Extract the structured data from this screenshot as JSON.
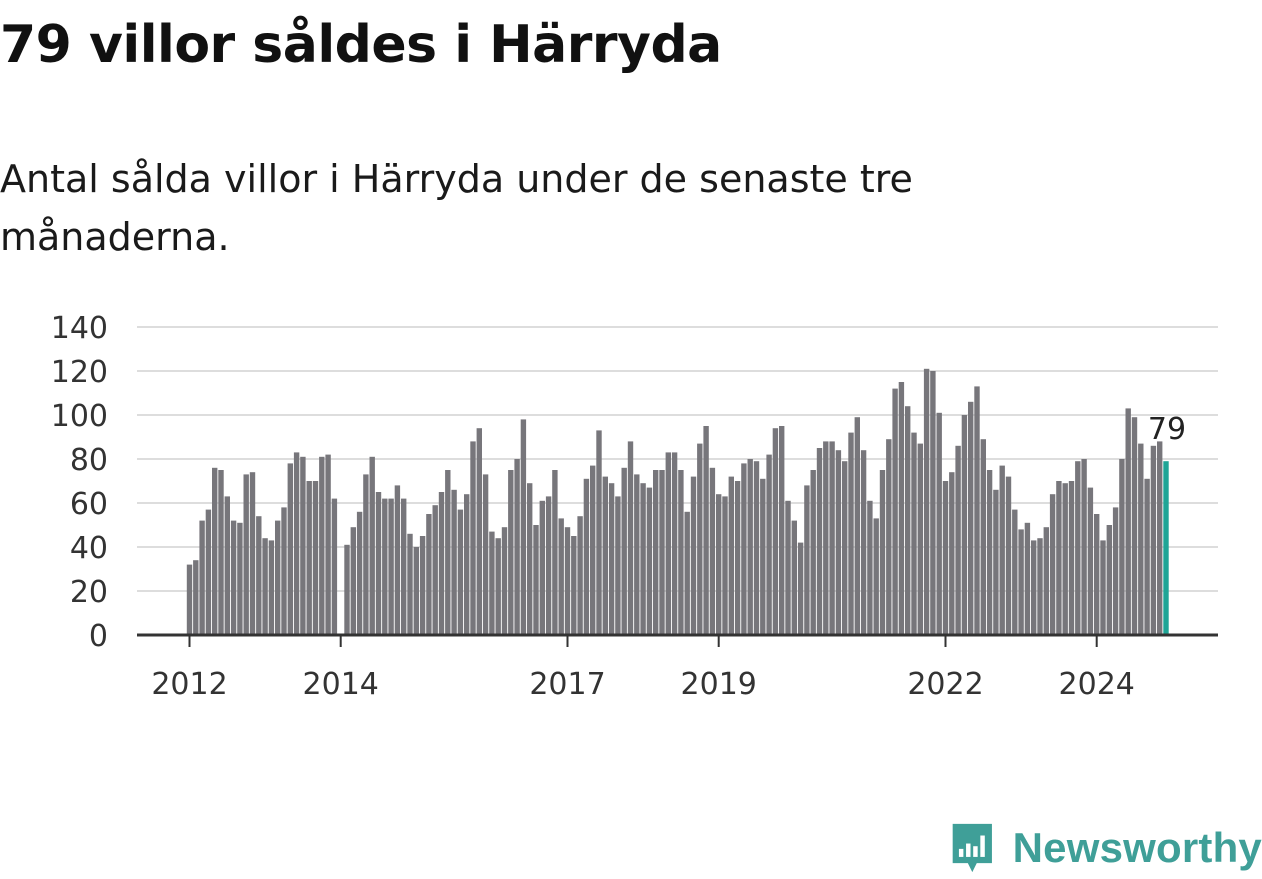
{
  "headline": "79 villor såldes i Härryda",
  "subtitle": "Antal sålda villor i Härryda under de senaste tre månaderna.",
  "logo": {
    "text": "Newsworthy",
    "icon": "newsworthy-logo-icon",
    "color": "#3f9f98"
  },
  "colors": {
    "bar": "#77767b",
    "highlight": "#1fa596",
    "grid": "#dddddd",
    "axis": "#333333",
    "text": "#333333"
  },
  "chart_data": {
    "type": "bar",
    "title": "79 villor såldes i Härryda",
    "subtitle": "Antal sålda villor i Härryda under de senaste tre månaderna.",
    "xlabel": "",
    "ylabel": "",
    "ylim": [
      0,
      140
    ],
    "yticks": [
      0,
      20,
      40,
      60,
      80,
      100,
      120,
      140
    ],
    "xticks": [
      "2012",
      "2014",
      "2017",
      "2019",
      "2022",
      "2024"
    ],
    "xtick_index": [
      0,
      24,
      60,
      84,
      120,
      144
    ],
    "grid": true,
    "highlight_label": "79",
    "first_month": "2012-01",
    "values": [
      32,
      34,
      52,
      57,
      76,
      75,
      63,
      52,
      51,
      73,
      74,
      54,
      44,
      43,
      52,
      58,
      78,
      83,
      81,
      70,
      70,
      81,
      82,
      62,
      null,
      41,
      49,
      56,
      73,
      81,
      65,
      62,
      62,
      68,
      62,
      46,
      40,
      45,
      55,
      59,
      65,
      75,
      66,
      57,
      64,
      88,
      94,
      73,
      47,
      44,
      49,
      75,
      80,
      98,
      69,
      50,
      61,
      63,
      75,
      53,
      49,
      45,
      54,
      71,
      77,
      93,
      72,
      69,
      63,
      76,
      88,
      73,
      69,
      67,
      75,
      75,
      83,
      83,
      75,
      56,
      72,
      87,
      95,
      76,
      64,
      63,
      72,
      70,
      78,
      80,
      79,
      71,
      82,
      94,
      95,
      61,
      52,
      42,
      68,
      75,
      85,
      88,
      88,
      84,
      79,
      92,
      99,
      84,
      61,
      53,
      75,
      89,
      112,
      115,
      104,
      92,
      87,
      121,
      120,
      101,
      70,
      74,
      86,
      100,
      106,
      113,
      89,
      75,
      66,
      77,
      72,
      57,
      48,
      51,
      43,
      44,
      49,
      64,
      70,
      69,
      70,
      79,
      80,
      67,
      55,
      43,
      50,
      58,
      80,
      103,
      99,
      87,
      71,
      86,
      88,
      79
    ]
  }
}
